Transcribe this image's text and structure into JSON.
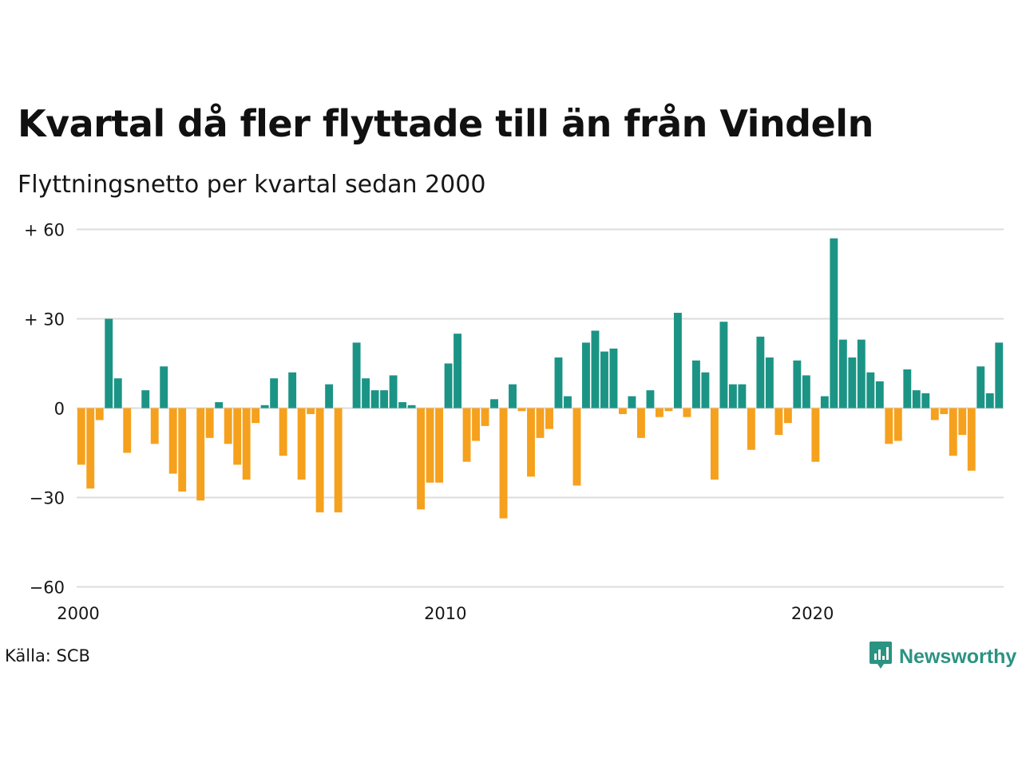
{
  "header": {
    "title": "Kvartal då fler flyttade till än från Vindeln",
    "subtitle": "Flyttningsnetto per kvartal sedan 2000"
  },
  "footer": {
    "source": "Källa: SCB",
    "brand": "Newsworthy"
  },
  "colors": {
    "positive": "#1b9485",
    "negative": "#f5a11d",
    "grid": "#dcdcdc",
    "brand": "#2b9382"
  },
  "chart_data": {
    "type": "bar",
    "ylim": [
      -60,
      60
    ],
    "yticks": [
      {
        "value": 60,
        "label": "+ 60"
      },
      {
        "value": 30,
        "label": "+ 30"
      },
      {
        "value": 0,
        "label": "0"
      },
      {
        "value": -30,
        "label": "−30"
      },
      {
        "value": -60,
        "label": "−60"
      }
    ],
    "xticks": [
      {
        "year": 2000,
        "label": "2000"
      },
      {
        "year": 2010,
        "label": "2010"
      },
      {
        "year": 2020,
        "label": "2020"
      }
    ],
    "start_year": 2000,
    "values": [
      -19,
      -27,
      -4,
      30,
      10,
      -15,
      0,
      6,
      -12,
      14,
      -22,
      -28,
      0,
      -31,
      -10,
      2,
      -12,
      -19,
      -24,
      -5,
      1,
      10,
      -16,
      12,
      -24,
      -2,
      -35,
      8,
      -35,
      0,
      22,
      10,
      6,
      6,
      11,
      2,
      1,
      -34,
      -25,
      -25,
      15,
      25,
      -18,
      -11,
      -6,
      3,
      -37,
      8,
      -1,
      -23,
      -10,
      -7,
      17,
      4,
      -26,
      22,
      26,
      19,
      20,
      -2,
      4,
      -10,
      6,
      -3,
      -1,
      32,
      -3,
      16,
      12,
      -24,
      29,
      8,
      8,
      -14,
      24,
      17,
      -9,
      -5,
      16,
      11,
      -18,
      4,
      57,
      23,
      17,
      23,
      12,
      9,
      -12,
      -11,
      13,
      6,
      5,
      -4,
      -2,
      -16,
      -9,
      -21,
      14,
      5,
      22
    ]
  }
}
